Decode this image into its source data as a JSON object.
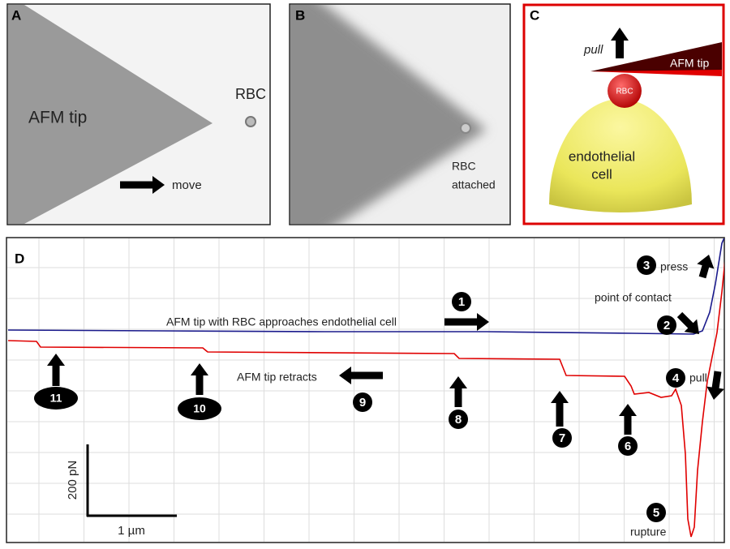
{
  "panels": {
    "a": {
      "label": "A",
      "tip": "AFM tip",
      "rbc": "RBC",
      "move": "move"
    },
    "b": {
      "label": "B",
      "rbc_attached": [
        "RBC",
        "attached"
      ]
    },
    "c": {
      "label": "C",
      "pull": "pull",
      "tip": "AFM tip",
      "rbc": "RBC",
      "cell": [
        "endothelial",
        "cell"
      ]
    },
    "d": {
      "label": "D",
      "approach": "AFM tip with RBC approaches endothelial cell",
      "contact": "point of contact",
      "press": "press",
      "pull": "pull",
      "rupture": "rupture",
      "retracts": "AFM tip retracts",
      "force_scale": "200 pN",
      "distance_scale": "1 µm",
      "steps": [
        "1",
        "2",
        "3",
        "4",
        "5",
        "6",
        "7",
        "8",
        "9",
        "10",
        "11"
      ]
    }
  }
}
